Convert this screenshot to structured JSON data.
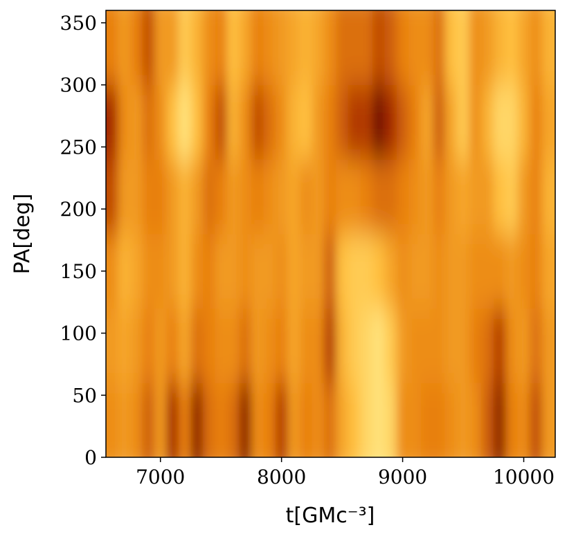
{
  "chart_data": {
    "type": "heatmap",
    "xlabel": "t[GMc⁻³]",
    "ylabel": "PA[deg]",
    "x": [
      6600,
      6700,
      6800,
      6900,
      7000,
      7100,
      7200,
      7300,
      7400,
      7500,
      7600,
      7700,
      7800,
      7900,
      8000,
      8100,
      8200,
      8300,
      8400,
      8500,
      8600,
      8700,
      8800,
      8900,
      9000,
      9100,
      9200,
      9300,
      9400,
      9500,
      9600,
      9700,
      9800,
      9900,
      10000,
      10100,
      10200
    ],
    "y": [
      30,
      90,
      150,
      210,
      270,
      330
    ],
    "z": [
      [
        0.55,
        0.6,
        0.55,
        0.4,
        0.6,
        0.25,
        0.5,
        0.2,
        0.45,
        0.5,
        0.45,
        0.2,
        0.55,
        0.5,
        0.3,
        0.6,
        0.5,
        0.55,
        0.45,
        0.65,
        0.75,
        0.85,
        0.9,
        0.85,
        0.55,
        0.55,
        0.5,
        0.5,
        0.55,
        0.6,
        0.55,
        0.4,
        0.2,
        0.5,
        0.55,
        0.35,
        0.6
      ],
      [
        0.6,
        0.65,
        0.6,
        0.5,
        0.6,
        0.5,
        0.65,
        0.45,
        0.5,
        0.55,
        0.55,
        0.45,
        0.6,
        0.55,
        0.5,
        0.65,
        0.55,
        0.55,
        0.3,
        0.7,
        0.8,
        0.85,
        0.9,
        0.8,
        0.6,
        0.55,
        0.55,
        0.55,
        0.6,
        0.6,
        0.5,
        0.45,
        0.3,
        0.55,
        0.6,
        0.45,
        0.6
      ],
      [
        0.55,
        0.7,
        0.65,
        0.55,
        0.55,
        0.6,
        0.7,
        0.55,
        0.5,
        0.6,
        0.6,
        0.55,
        0.6,
        0.6,
        0.55,
        0.65,
        0.6,
        0.6,
        0.4,
        0.75,
        0.8,
        0.8,
        0.75,
        0.65,
        0.55,
        0.6,
        0.6,
        0.55,
        0.6,
        0.6,
        0.55,
        0.55,
        0.55,
        0.6,
        0.55,
        0.5,
        0.65
      ],
      [
        0.35,
        0.6,
        0.6,
        0.5,
        0.5,
        0.6,
        0.7,
        0.6,
        0.45,
        0.5,
        0.6,
        0.55,
        0.5,
        0.55,
        0.6,
        0.65,
        0.55,
        0.6,
        0.5,
        0.55,
        0.55,
        0.5,
        0.45,
        0.45,
        0.5,
        0.55,
        0.6,
        0.5,
        0.6,
        0.65,
        0.6,
        0.6,
        0.75,
        0.8,
        0.6,
        0.5,
        0.7
      ],
      [
        0.25,
        0.55,
        0.6,
        0.45,
        0.55,
        0.75,
        0.9,
        0.75,
        0.5,
        0.35,
        0.7,
        0.55,
        0.35,
        0.45,
        0.55,
        0.7,
        0.75,
        0.6,
        0.5,
        0.4,
        0.3,
        0.3,
        0.15,
        0.25,
        0.4,
        0.5,
        0.65,
        0.4,
        0.65,
        0.8,
        0.55,
        0.7,
        0.85,
        0.85,
        0.7,
        0.5,
        0.65
      ],
      [
        0.5,
        0.6,
        0.5,
        0.35,
        0.6,
        0.6,
        0.8,
        0.7,
        0.55,
        0.5,
        0.75,
        0.65,
        0.5,
        0.55,
        0.6,
        0.65,
        0.7,
        0.65,
        0.55,
        0.45,
        0.45,
        0.45,
        0.35,
        0.4,
        0.5,
        0.55,
        0.55,
        0.45,
        0.75,
        0.8,
        0.55,
        0.6,
        0.7,
        0.75,
        0.65,
        0.55,
        0.7
      ]
    ],
    "colormap": [
      "#2a0000",
      "#a52a00",
      "#e8800f",
      "#ffc040",
      "#fff8a0"
    ],
    "xlim": [
      6550,
      10260
    ],
    "ylim": [
      0,
      360
    ],
    "xticks": [
      7000,
      8000,
      9000,
      10000
    ],
    "yticks": [
      0,
      50,
      100,
      150,
      200,
      250,
      300,
      350
    ]
  }
}
